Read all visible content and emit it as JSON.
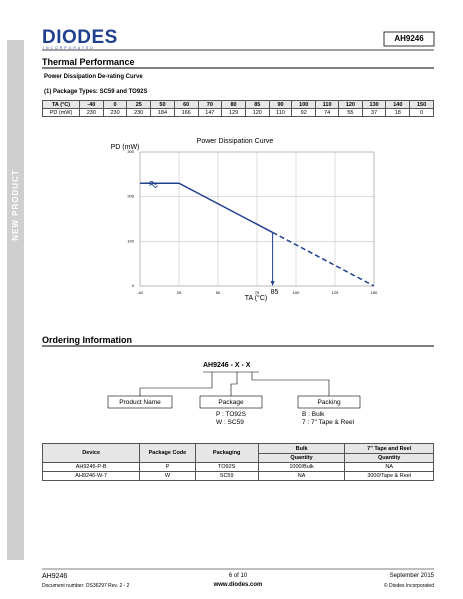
{
  "header": {
    "logo": "DIODES",
    "logo_sub": "INCORPORATED",
    "part": "AH9246"
  },
  "side_label": "NEW PRODUCT",
  "thermal": {
    "heading": "Thermal Performance",
    "subheading": "Power Dissipation De-rating Curve",
    "package_note": "(1)   Package Types: SC59 and TO92S",
    "table": {
      "rows": [
        [
          "TA (°C)",
          -40,
          0,
          25,
          50,
          60,
          70,
          80,
          85,
          90,
          100,
          110,
          120,
          130,
          140,
          150
        ],
        [
          "PD (mW)",
          230,
          230,
          230,
          184,
          166,
          147,
          129,
          120,
          110,
          92,
          74,
          55,
          37,
          18,
          0
        ]
      ]
    }
  },
  "chart_data": {
    "type": "line",
    "title": "Power Dissipation Curve",
    "y_label": "PD (mW)",
    "x_label": "TA (°C)",
    "x": [
      -40,
      25,
      85,
      150
    ],
    "values": [
      230,
      230,
      120,
      0
    ],
    "color": "#1f3f8f",
    "xlim": [
      -40,
      150
    ],
    "ylim": [
      0,
      300
    ],
    "xticks": [
      -40,
      25,
      50,
      75,
      100,
      125,
      150
    ],
    "yticks": [
      0,
      100,
      200,
      300
    ],
    "grid": true,
    "annotations": [
      "85"
    ]
  },
  "ordering": {
    "heading": "Ordering Information",
    "code": "AH9246 - X - X",
    "boxes": [
      "Product Name",
      "Package",
      "Packing"
    ],
    "package_options": [
      "P : TO92S",
      "W : SC59"
    ],
    "packing_options": [
      "B : Bulk",
      "7 : 7\" Tape & Reel"
    ],
    "table": {
      "headers": [
        "Device",
        "Package Code",
        "Packaging",
        "Bulk",
        "7\" Tape and Reel"
      ],
      "subheaders": [
        "Quantity",
        "Quantity"
      ],
      "rows": [
        [
          "AH9246-P-B",
          "P",
          "TO92S",
          "1000/Bulk",
          "NA"
        ],
        [
          "AH9246-W-7",
          "W",
          "SC59",
          "NA",
          "3000/Tape & Reel"
        ]
      ]
    }
  },
  "footer": {
    "part": "AH9246",
    "doc_number": "Document number: DS36297  Rev. 2 - 2",
    "page": "6 of 10",
    "url": "www.diodes.com",
    "date": "September 2015",
    "copyright": "© Diodes Incorporated"
  }
}
